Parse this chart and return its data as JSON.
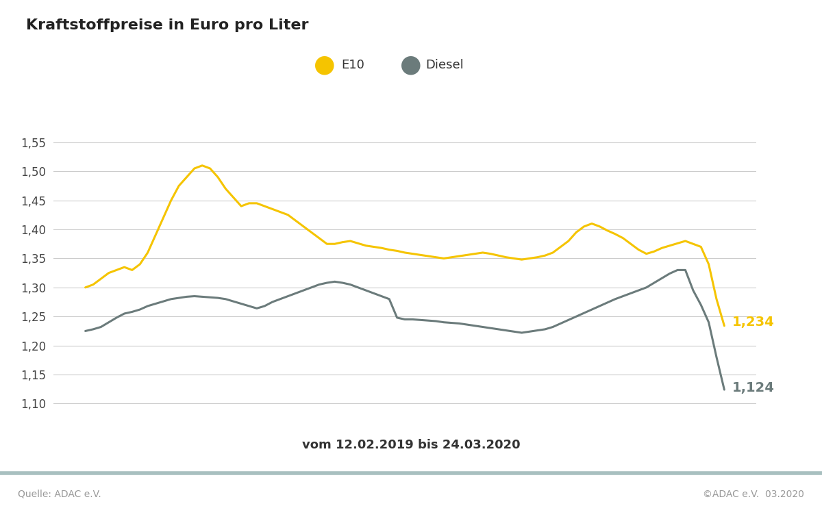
{
  "title": "Kraftstoffpreise in Euro pro Liter",
  "subtitle": "vom 12.02.2019 bis 24.03.2020",
  "source_left": "Quelle: ADAC e.V.",
  "source_right": "©ADAC e.V.  03.2020",
  "legend_e10": "E10",
  "legend_diesel": "Diesel",
  "e10_color": "#F5C400",
  "diesel_color": "#6B7B7B",
  "background_color": "#FFFFFF",
  "footer_line_color": "#A8C0C0",
  "grid_color": "#CCCCCC",
  "ylim": [
    1.08,
    1.585
  ],
  "yticks": [
    1.1,
    1.15,
    1.2,
    1.25,
    1.3,
    1.35,
    1.4,
    1.45,
    1.5,
    1.55
  ],
  "e10_final": "1,234",
  "diesel_final": "1,124",
  "e10_data": [
    1.3,
    1.305,
    1.315,
    1.325,
    1.33,
    1.335,
    1.33,
    1.34,
    1.36,
    1.39,
    1.42,
    1.45,
    1.475,
    1.49,
    1.505,
    1.51,
    1.505,
    1.49,
    1.47,
    1.455,
    1.44,
    1.445,
    1.445,
    1.44,
    1.435,
    1.43,
    1.425,
    1.415,
    1.405,
    1.395,
    1.385,
    1.375,
    1.375,
    1.378,
    1.38,
    1.376,
    1.372,
    1.37,
    1.368,
    1.365,
    1.363,
    1.36,
    1.358,
    1.356,
    1.354,
    1.352,
    1.35,
    1.352,
    1.354,
    1.356,
    1.358,
    1.36,
    1.358,
    1.355,
    1.352,
    1.35,
    1.348,
    1.35,
    1.352,
    1.355,
    1.36,
    1.37,
    1.38,
    1.395,
    1.405,
    1.41,
    1.405,
    1.398,
    1.392,
    1.385,
    1.375,
    1.365,
    1.358,
    1.362,
    1.368,
    1.372,
    1.376,
    1.38,
    1.375,
    1.37,
    1.34,
    1.28,
    1.234
  ],
  "diesel_data": [
    1.225,
    1.228,
    1.232,
    1.24,
    1.248,
    1.255,
    1.258,
    1.262,
    1.268,
    1.272,
    1.276,
    1.28,
    1.282,
    1.284,
    1.285,
    1.284,
    1.283,
    1.282,
    1.28,
    1.276,
    1.272,
    1.268,
    1.264,
    1.268,
    1.275,
    1.28,
    1.285,
    1.29,
    1.295,
    1.3,
    1.305,
    1.308,
    1.31,
    1.308,
    1.305,
    1.3,
    1.295,
    1.29,
    1.285,
    1.28,
    1.248,
    1.245,
    1.245,
    1.244,
    1.243,
    1.242,
    1.24,
    1.239,
    1.238,
    1.236,
    1.234,
    1.232,
    1.23,
    1.228,
    1.226,
    1.224,
    1.222,
    1.224,
    1.226,
    1.228,
    1.232,
    1.238,
    1.244,
    1.25,
    1.256,
    1.262,
    1.268,
    1.274,
    1.28,
    1.285,
    1.29,
    1.295,
    1.3,
    1.308,
    1.316,
    1.324,
    1.33,
    1.33,
    1.295,
    1.27,
    1.24,
    1.18,
    1.124
  ]
}
